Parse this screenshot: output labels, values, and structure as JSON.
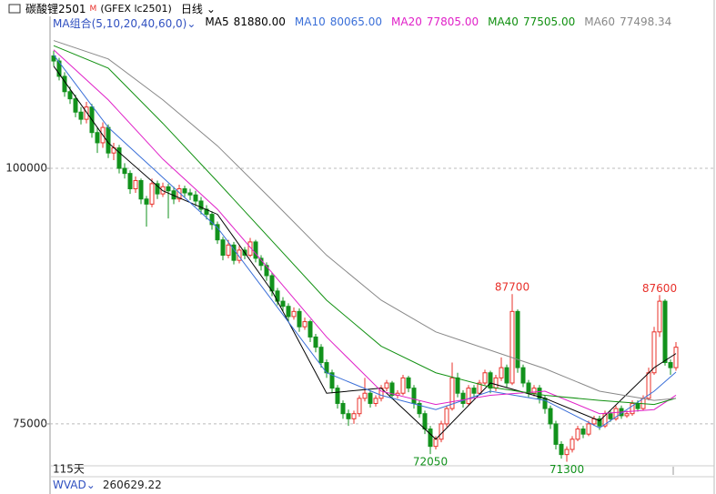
{
  "header": {
    "title": "碳酸锂2501",
    "badge": "M",
    "code": "(GFEX lc2501)",
    "period": "日线"
  },
  "chart_data": {
    "type": "candlestick",
    "ma_label": "MA组合(5,10,20,40,60,0)",
    "ylim": [
      70900,
      115400
    ],
    "yticks": [
      75000,
      100000
    ],
    "grid": true,
    "up_color": "#e8302a",
    "down_color": "#12921c",
    "marked_highs": [
      84,
      111
    ],
    "marked_lows": [
      69,
      94
    ],
    "candles": [
      [
        111000,
        111500,
        110000,
        110500
      ],
      [
        110500,
        110800,
        108600,
        109000
      ],
      [
        109000,
        109400,
        107000,
        107500
      ],
      [
        107500,
        108000,
        106300,
        106800
      ],
      [
        106800,
        107200,
        105000,
        105500
      ],
      [
        105500,
        106000,
        104300,
        104800
      ],
      [
        104800,
        106500,
        104400,
        106000
      ],
      [
        106000,
        106300,
        103000,
        103500
      ],
      [
        103500,
        104000,
        101500,
        102500
      ],
      [
        102500,
        104500,
        102000,
        104000
      ],
      [
        104000,
        104300,
        101000,
        101500
      ],
      [
        101500,
        102500,
        100800,
        102000
      ],
      [
        102000,
        102300,
        99500,
        100000
      ],
      [
        100000,
        100500,
        99000,
        99500
      ],
      [
        99500,
        99800,
        97500,
        98000
      ],
      [
        98000,
        99200,
        97600,
        98800
      ],
      [
        98800,
        99000,
        96500,
        97000
      ],
      [
        97000,
        97300,
        94300,
        96500
      ],
      [
        96500,
        99000,
        96200,
        98500
      ],
      [
        98500,
        98800,
        97000,
        97500
      ],
      [
        97500,
        98600,
        97200,
        98200
      ],
      [
        98200,
        98500,
        95100,
        97800
      ],
      [
        97800,
        98200,
        96500,
        97000
      ],
      [
        97000,
        98400,
        96700,
        98000
      ],
      [
        98000,
        98300,
        97200,
        97600
      ],
      [
        97600,
        98000,
        96900,
        97400
      ],
      [
        97400,
        97800,
        96300,
        96800
      ],
      [
        96800,
        97200,
        95500,
        96000
      ],
      [
        96000,
        96400,
        95000,
        95500
      ],
      [
        95500,
        95800,
        94000,
        94500
      ],
      [
        94500,
        94800,
        92600,
        93000
      ],
      [
        93000,
        93300,
        91000,
        91500
      ],
      [
        91500,
        93000,
        91200,
        92500
      ],
      [
        92500,
        92800,
        90600,
        91000
      ],
      [
        91000,
        92400,
        90700,
        92000
      ],
      [
        92000,
        92300,
        91100,
        91500
      ],
      [
        91500,
        93200,
        91300,
        92800
      ],
      [
        92800,
        93000,
        90800,
        91200
      ],
      [
        91200,
        91500,
        90000,
        90500
      ],
      [
        90500,
        90800,
        89000,
        89500
      ],
      [
        89500,
        89800,
        87500,
        88000
      ],
      [
        88000,
        88300,
        86600,
        87000
      ],
      [
        87000,
        87400,
        86000,
        86500
      ],
      [
        86500,
        86800,
        85000,
        85500
      ],
      [
        85500,
        86400,
        85200,
        86000
      ],
      [
        86000,
        86300,
        84000,
        84500
      ],
      [
        84500,
        85400,
        84200,
        85000
      ],
      [
        85000,
        85200,
        83000,
        83500
      ],
      [
        83500,
        83800,
        82000,
        82500
      ],
      [
        82500,
        82800,
        80500,
        81000
      ],
      [
        81000,
        81300,
        79500,
        80000
      ],
      [
        80000,
        80300,
        78000,
        78500
      ],
      [
        78500,
        78800,
        76500,
        77000
      ],
      [
        77000,
        77300,
        75500,
        76000
      ],
      [
        76000,
        76400,
        74800,
        75500
      ],
      [
        75500,
        76300,
        75000,
        76000
      ],
      [
        76000,
        77800,
        75700,
        77500
      ],
      [
        77500,
        79500,
        77200,
        78000
      ],
      [
        78000,
        78300,
        76600,
        77000
      ],
      [
        77000,
        77800,
        76700,
        77500
      ],
      [
        77500,
        78800,
        77200,
        78500
      ],
      [
        78500,
        79300,
        78200,
        79000
      ],
      [
        79000,
        79200,
        77400,
        77800
      ],
      [
        77800,
        78300,
        77500,
        78000
      ],
      [
        78000,
        79800,
        77800,
        79500
      ],
      [
        79500,
        79700,
        78100,
        78500
      ],
      [
        78500,
        78800,
        76500,
        77000
      ],
      [
        77000,
        77300,
        75600,
        76000
      ],
      [
        76000,
        76300,
        74000,
        74500
      ],
      [
        74500,
        74800,
        72050,
        72800
      ],
      [
        72800,
        73800,
        72500,
        73500
      ],
      [
        73500,
        75300,
        73200,
        75000
      ],
      [
        75000,
        76800,
        74700,
        76500
      ],
      [
        76500,
        81000,
        76300,
        79500
      ],
      [
        79500,
        80000,
        77600,
        78000
      ],
      [
        78000,
        78300,
        76600,
        77000
      ],
      [
        77000,
        78800,
        76800,
        78500
      ],
      [
        78500,
        78800,
        77600,
        78000
      ],
      [
        78000,
        79300,
        77800,
        79000
      ],
      [
        79000,
        80300,
        78800,
        80000
      ],
      [
        80000,
        80200,
        78000,
        78500
      ],
      [
        78500,
        79800,
        78200,
        79500
      ],
      [
        79500,
        81500,
        79200,
        80500
      ],
      [
        80500,
        80800,
        78600,
        79000
      ],
      [
        79000,
        87700,
        78800,
        86000
      ],
      [
        86000,
        86200,
        80000,
        80500
      ],
      [
        80500,
        80800,
        78600,
        79000
      ],
      [
        79000,
        79300,
        77600,
        78000
      ],
      [
        78000,
        78800,
        77700,
        78500
      ],
      [
        78500,
        78800,
        77000,
        77500
      ],
      [
        77500,
        77800,
        76000,
        76500
      ],
      [
        76500,
        76800,
        74500,
        75000
      ],
      [
        75000,
        75300,
        72500,
        73000
      ],
      [
        73000,
        73300,
        71600,
        72000
      ],
      [
        72000,
        72800,
        71300,
        72500
      ],
      [
        72500,
        73800,
        72200,
        73500
      ],
      [
        73500,
        74800,
        73300,
        74500
      ],
      [
        74500,
        74800,
        73600,
        74000
      ],
      [
        74000,
        75300,
        73800,
        75000
      ],
      [
        75000,
        75800,
        74800,
        75500
      ],
      [
        75500,
        75800,
        74400,
        74800
      ],
      [
        74800,
        76300,
        74600,
        76000
      ],
      [
        76000,
        76300,
        75200,
        75500
      ],
      [
        75500,
        76800,
        75300,
        76500
      ],
      [
        76500,
        76800,
        75500,
        75800
      ],
      [
        75800,
        76300,
        75600,
        76000
      ],
      [
        76000,
        77300,
        75800,
        77000
      ],
      [
        77000,
        77300,
        76200,
        76500
      ],
      [
        76500,
        77800,
        76300,
        77500
      ],
      [
        77500,
        80500,
        77300,
        80000
      ],
      [
        80000,
        84500,
        79800,
        84000
      ],
      [
        84000,
        87600,
        83500,
        87000
      ],
      [
        87000,
        87200,
        80700,
        81000
      ],
      [
        81000,
        81300,
        79800,
        80500
      ],
      [
        80500,
        83000,
        80200,
        82500
      ]
    ],
    "ma_x": [
      0,
      10,
      20,
      30,
      40,
      50,
      60,
      70,
      80,
      90,
      100,
      110,
      114
    ],
    "series": [
      {
        "name": "MA5",
        "color": "#000000",
        "values": [
          110000,
          102500,
          97800,
          95500,
          88000,
          78000,
          78500,
          73500,
          79000,
          77500,
          75300,
          80500,
          81880.0
        ],
        "value_labels": [
          null,
          null,
          null,
          null,
          null,
          null,
          null,
          null,
          null,
          null,
          null,
          null,
          "81880.00"
        ]
      },
      {
        "name": "MA10",
        "color": "#3a6fd8",
        "values": [
          111100,
          104000,
          99100,
          94200,
          87100,
          80000,
          77800,
          76400,
          78200,
          77300,
          74600,
          78200,
          80065.0
        ],
        "value_labels": [
          null,
          null,
          null,
          null,
          null,
          null,
          null,
          null,
          null,
          null,
          null,
          null,
          "80065.00"
        ]
      },
      {
        "name": "MA20",
        "color": "#e020c8",
        "values": [
          111600,
          106700,
          100900,
          96000,
          89800,
          83500,
          78200,
          76900,
          77800,
          78200,
          76000,
          76400,
          77805.0
        ],
        "value_labels": [
          null,
          null,
          null,
          null,
          null,
          null,
          null,
          null,
          null,
          null,
          null,
          null,
          "77805.00"
        ]
      },
      {
        "name": "MA40",
        "color": "#109010",
        "values": [
          112000,
          109800,
          104400,
          98700,
          92900,
          87100,
          82600,
          80000,
          78600,
          77800,
          77300,
          76900,
          77505.0
        ],
        "value_labels": [
          null,
          null,
          null,
          null,
          null,
          null,
          null,
          null,
          null,
          null,
          null,
          null,
          "77505.00"
        ]
      },
      {
        "name": "MA60",
        "color": "#888888",
        "values": [
          112500,
          110700,
          106700,
          102200,
          96900,
          91500,
          87100,
          84000,
          82200,
          80400,
          78200,
          77300,
          77498.34
        ],
        "value_labels": [
          null,
          null,
          null,
          null,
          null,
          null,
          null,
          null,
          null,
          null,
          null,
          null,
          "77498.34"
        ]
      }
    ],
    "period_label": "115天",
    "indicator": {
      "name": "WVAD",
      "value": 260629.22
    }
  }
}
